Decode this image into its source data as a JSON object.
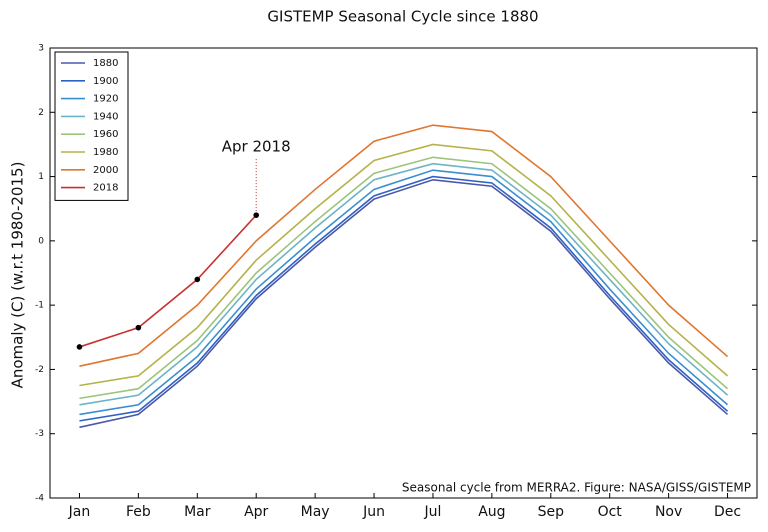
{
  "chart_data": {
    "type": "line",
    "title": "GISTEMP Seasonal Cycle since 1880",
    "y_label": "Anomaly (C) (w.r.t 1980-2015)",
    "credit": "Seasonal cycle from MERRA2. Figure: NASA/GISS/GISTEMP",
    "annotation": "Apr 2018",
    "categories": [
      "Jan",
      "Feb",
      "Mar",
      "Apr",
      "May",
      "Jun",
      "Jul",
      "Aug",
      "Sep",
      "Oct",
      "Nov",
      "Dec"
    ],
    "ylim": [
      -4,
      3
    ],
    "yticks": [
      -4,
      -3,
      -2,
      -1,
      0,
      1,
      2,
      3
    ],
    "legend": "upper left",
    "marker_color": "#000000",
    "series": [
      {
        "name": "1880",
        "color": "#4a58a8",
        "values": [
          -2.9,
          -2.7,
          -1.95,
          -0.9,
          -0.1,
          0.65,
          0.95,
          0.85,
          0.15,
          -0.9,
          -1.9,
          -2.7
        ]
      },
      {
        "name": "1900",
        "color": "#2f62c6",
        "values": [
          -2.8,
          -2.65,
          -1.9,
          -0.85,
          -0.05,
          0.7,
          1.0,
          0.9,
          0.2,
          -0.85,
          -1.85,
          -2.65
        ]
      },
      {
        "name": "1920",
        "color": "#3a8fd0",
        "values": [
          -2.7,
          -2.55,
          -1.8,
          -0.75,
          0.05,
          0.8,
          1.1,
          1.0,
          0.3,
          -0.75,
          -1.75,
          -2.55
        ]
      },
      {
        "name": "1940",
        "color": "#6cb4c8",
        "values": [
          -2.55,
          -2.4,
          -1.65,
          -0.6,
          0.2,
          0.95,
          1.2,
          1.1,
          0.4,
          -0.6,
          -1.6,
          -2.4
        ]
      },
      {
        "name": "1960",
        "color": "#9cc47a",
        "values": [
          -2.45,
          -2.3,
          -1.55,
          -0.5,
          0.3,
          1.05,
          1.3,
          1.2,
          0.5,
          -0.5,
          -1.5,
          -2.3
        ]
      },
      {
        "name": "1980",
        "color": "#b5b24a",
        "values": [
          -2.25,
          -2.1,
          -1.35,
          -0.3,
          0.5,
          1.25,
          1.5,
          1.4,
          0.7,
          -0.3,
          -1.3,
          -2.1
        ]
      },
      {
        "name": "2000",
        "color": "#e0762f",
        "values": [
          -1.95,
          -1.75,
          -1.0,
          0.0,
          0.8,
          1.55,
          1.8,
          1.7,
          1.0,
          0.0,
          -1.0,
          -1.8
        ]
      },
      {
        "name": "2018",
        "color": "#c8312e",
        "values": [
          -1.65,
          -1.35,
          -0.6,
          0.4,
          null,
          null,
          null,
          null,
          null,
          null,
          null,
          null
        ]
      }
    ]
  }
}
